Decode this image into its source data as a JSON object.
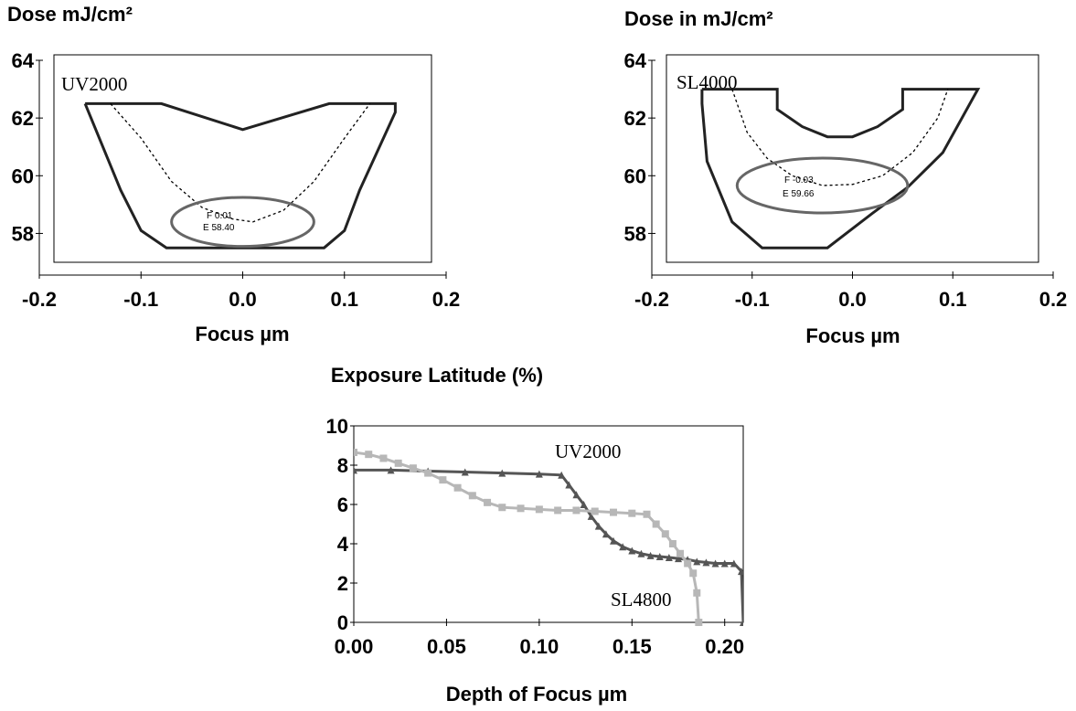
{
  "chart_data": [
    {
      "type": "line",
      "title": "Dose mJ/cm²",
      "xlabel": "Focus  µm",
      "ylabel": "Dose mJ/cm²",
      "xlim": [
        -0.2,
        0.2
      ],
      "ylim": [
        57,
        64
      ],
      "x_ticks": [
        "-0.2",
        "-0.1",
        "0.0",
        "0.1",
        "0.2"
      ],
      "y_ticks": [
        "58",
        "60",
        "62",
        "64"
      ],
      "annotations": [
        "UV2000",
        "F 0.01",
        "E 58.40"
      ],
      "series": [
        {
          "name": "UV2000",
          "color": "#222222",
          "x": [
            -0.155,
            -0.08,
            0.0,
            0.085,
            0.15,
            0.15,
            0.115,
            0.1,
            0.08,
            -0.075,
            -0.1,
            -0.12,
            -0.155
          ],
          "y": [
            62.5,
            62.5,
            61.6,
            62.5,
            62.5,
            62.2,
            59.5,
            58.1,
            57.5,
            57.5,
            58.1,
            59.5,
            62.5
          ]
        },
        {
          "color": "#000000",
          "style": "dashed",
          "x": [
            -0.13,
            -0.1,
            -0.07,
            -0.04,
            -0.01,
            0.01,
            0.04,
            0.07,
            0.1,
            0.125
          ],
          "y": [
            62.5,
            61.3,
            59.8,
            58.9,
            58.5,
            58.4,
            58.8,
            59.8,
            61.3,
            62.5
          ]
        },
        {
          "color": "#666666",
          "shape": "ellipse",
          "x": [
            0.0
          ],
          "y": [
            58.4
          ],
          "rx": 0.07,
          "ry": 0.85
        }
      ]
    },
    {
      "type": "line",
      "title": "Dose in mJ/cm²",
      "xlabel": "Focus µm",
      "ylabel": "Dose in mJ/cm²",
      "xlim": [
        -0.2,
        0.2
      ],
      "ylim": [
        57,
        64
      ],
      "x_ticks": [
        "-0.2",
        "-0.1",
        "0.0",
        "0.1",
        "0.2"
      ],
      "y_ticks": [
        "58",
        "60",
        "62",
        "64"
      ],
      "annotations": [
        "SL4000",
        "F -0.03",
        "E 59.66"
      ],
      "series": [
        {
          "name": "SL4000",
          "color": "#222222",
          "x": [
            -0.15,
            -0.075,
            -0.075,
            -0.05,
            -0.025,
            0.0,
            0.025,
            0.05,
            0.05,
            0.125,
            0.09,
            0.055,
            0.02,
            -0.025,
            -0.09,
            -0.12,
            -0.145,
            -0.15,
            -0.15
          ],
          "y": [
            63.0,
            63.0,
            62.3,
            61.7,
            61.35,
            61.35,
            61.7,
            62.3,
            63.0,
            63.0,
            60.8,
            59.6,
            58.7,
            57.5,
            57.5,
            58.4,
            60.5,
            62.5,
            63.0
          ]
        },
        {
          "color": "#000000",
          "style": "dashed",
          "x": [
            -0.12,
            -0.105,
            -0.085,
            -0.06,
            -0.03,
            0.0,
            0.03,
            0.06,
            0.085,
            0.095
          ],
          "y": [
            63.0,
            61.5,
            60.6,
            60.0,
            59.66,
            59.7,
            60.0,
            60.8,
            62.0,
            63.0
          ]
        },
        {
          "color": "#666666",
          "shape": "ellipse",
          "x": [
            -0.03
          ],
          "y": [
            59.66
          ],
          "rx": 0.085,
          "ry": 0.95
        }
      ]
    },
    {
      "type": "line",
      "title": "Exposure Latitude (%)",
      "xlabel": "Depth of Focus  µm",
      "ylabel": "Exposure Latitude (%)",
      "xlim": [
        0,
        0.21
      ],
      "ylim": [
        0,
        10
      ],
      "x_ticks": [
        "0.00",
        "0.05",
        "0.10",
        "0.15",
        "0.20"
      ],
      "y_ticks": [
        "0",
        "2",
        "4",
        "6",
        "8",
        "10"
      ],
      "series": [
        {
          "name": "UV2000",
          "color": "#555555",
          "marker": "triangle",
          "x": [
            0.0,
            0.02,
            0.04,
            0.06,
            0.08,
            0.1,
            0.112,
            0.116,
            0.12,
            0.124,
            0.128,
            0.132,
            0.136,
            0.14,
            0.145,
            0.15,
            0.155,
            0.16,
            0.165,
            0.17,
            0.175,
            0.18,
            0.185,
            0.19,
            0.195,
            0.2,
            0.205,
            0.209,
            0.21
          ],
          "y": [
            7.75,
            7.75,
            7.7,
            7.65,
            7.6,
            7.55,
            7.5,
            7.0,
            6.5,
            6.0,
            5.4,
            4.9,
            4.5,
            4.15,
            3.85,
            3.65,
            3.5,
            3.4,
            3.35,
            3.3,
            3.25,
            3.2,
            3.1,
            3.05,
            3.0,
            3.0,
            3.0,
            2.6,
            0.0
          ]
        },
        {
          "name": "SL4800",
          "color": "#b7b7b7",
          "marker": "square",
          "x": [
            0.0,
            0.008,
            0.016,
            0.024,
            0.032,
            0.04,
            0.048,
            0.056,
            0.064,
            0.072,
            0.08,
            0.09,
            0.1,
            0.11,
            0.12,
            0.13,
            0.14,
            0.15,
            0.158,
            0.163,
            0.168,
            0.172,
            0.176,
            0.18,
            0.183,
            0.185,
            0.186
          ],
          "y": [
            8.65,
            8.55,
            8.35,
            8.1,
            7.85,
            7.6,
            7.25,
            6.85,
            6.45,
            6.1,
            5.85,
            5.8,
            5.75,
            5.7,
            5.7,
            5.65,
            5.6,
            5.55,
            5.5,
            5.0,
            4.5,
            4.0,
            3.5,
            3.0,
            2.5,
            1.5,
            0.0
          ]
        }
      ]
    }
  ]
}
